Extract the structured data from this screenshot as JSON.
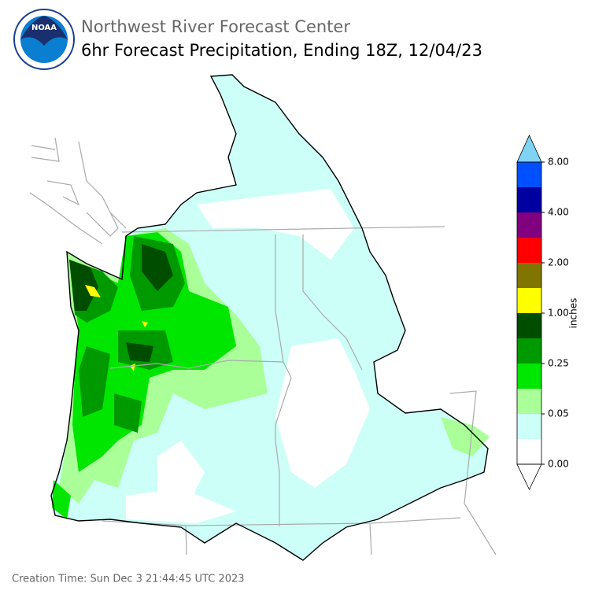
{
  "header": {
    "logo_text": "NOAA",
    "title": "Northwest River Forecast Center",
    "subtitle": "6hr Forecast Precipitation, Ending 18Z, 12/04/23"
  },
  "colorbar": {
    "label": "inches",
    "under_color": "#ffffff",
    "over_color": "#7fd4f5",
    "colors": [
      "#ffffff",
      "#ccfff8",
      "#aaff99",
      "#00e600",
      "#009900",
      "#004d00",
      "#ffff00",
      "#807500",
      "#ff0000",
      "#800080",
      "#0000a0",
      "#0050ff"
    ],
    "ticks": [
      {
        "value": 0,
        "label": "0.00"
      },
      {
        "value": 0.05,
        "label": "0.05"
      },
      {
        "value": 0.25,
        "label": "0.25"
      },
      {
        "value": 1,
        "label": "1.00"
      },
      {
        "value": 2,
        "label": "2.00"
      },
      {
        "value": 4,
        "label": "4.00"
      },
      {
        "value": 8,
        "label": "8.00"
      }
    ]
  },
  "footer": {
    "creation_time": "Creation Time: Sun Dec 3 21:44:45 UTC 2023"
  }
}
